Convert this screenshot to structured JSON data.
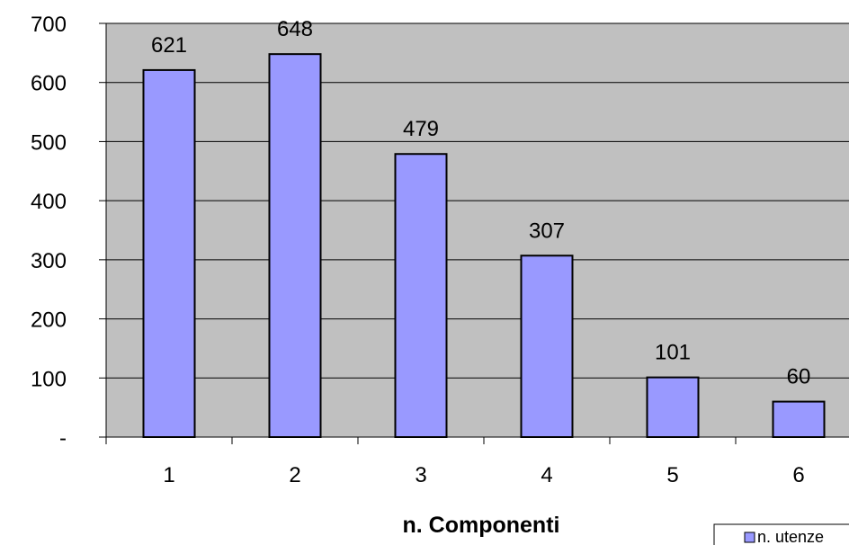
{
  "chart_data": {
    "type": "bar",
    "categories": [
      "1",
      "2",
      "3",
      "4",
      "5",
      "6"
    ],
    "series": [
      {
        "name": "n. utenze",
        "values": [
          621,
          648,
          479,
          307,
          101,
          60
        ]
      }
    ],
    "data_labels": [
      "621",
      "648",
      "479",
      "307",
      "101",
      "60"
    ],
    "xlabel": "n. Componenti",
    "ylabel": "",
    "ylim": [
      0,
      700
    ],
    "y_ticks": [
      0,
      100,
      200,
      300,
      400,
      500,
      600,
      700
    ],
    "y_tick_labels": [
      "-",
      "100",
      "200",
      "300",
      "400",
      "500",
      "600",
      "700"
    ],
    "grid": true,
    "legend_position": "bottom-right",
    "colors": {
      "plot_background": "#c0c0c0",
      "bar_fill": "#9999ff",
      "bar_stroke": "#000000",
      "gridline": "#000000"
    }
  }
}
